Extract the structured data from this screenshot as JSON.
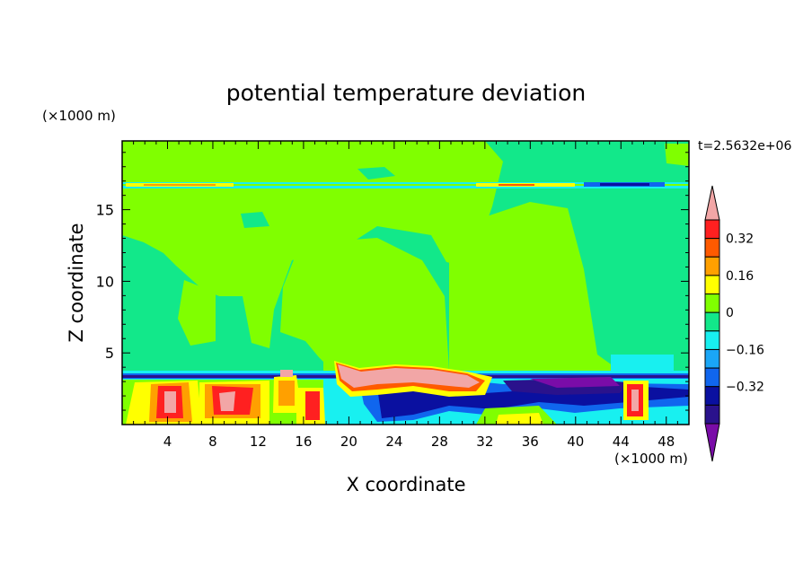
{
  "chart_data": {
    "type": "heatmap",
    "title": "potential temperature deviation",
    "xlabel": "X coordinate",
    "ylabel": "Z coordinate",
    "x_unit_label": "(×1000 m)",
    "y_unit_label": "(×1000 m)",
    "time_label": "t=2.5632e+06",
    "xlim": [
      0,
      50
    ],
    "ylim": [
      0,
      19.8
    ],
    "x_ticks": [
      4,
      8,
      12,
      16,
      20,
      24,
      28,
      32,
      36,
      40,
      44,
      48
    ],
    "y_ticks": [
      5,
      10,
      15
    ],
    "x_tick_labels": [
      "4",
      "8",
      "12",
      "16",
      "20",
      "24",
      "28",
      "32",
      "36",
      "40",
      "44",
      "48"
    ],
    "y_tick_labels": [
      "5",
      "10",
      "15"
    ],
    "colorbar": {
      "levels": [
        -0.48,
        -0.4,
        -0.32,
        -0.24,
        -0.16,
        -0.08,
        0,
        0.08,
        0.16,
        0.24,
        0.32,
        0.4
      ],
      "labeled_levels": [
        "0.32",
        "0.16",
        "0",
        "−0.16",
        "−0.32"
      ],
      "labeled_values": [
        0.32,
        0.16,
        0,
        -0.16,
        -0.32
      ],
      "colors": [
        "#7a0ca8",
        "#2a128c",
        "#0a10a0",
        "#1066ee",
        "#1aa6f6",
        "#18f0f0",
        "#12e88a",
        "#80ff00",
        "#ffff00",
        "#ffa000",
        "#ff5a00",
        "#ff2020",
        "#f2a6a6"
      ]
    }
  }
}
